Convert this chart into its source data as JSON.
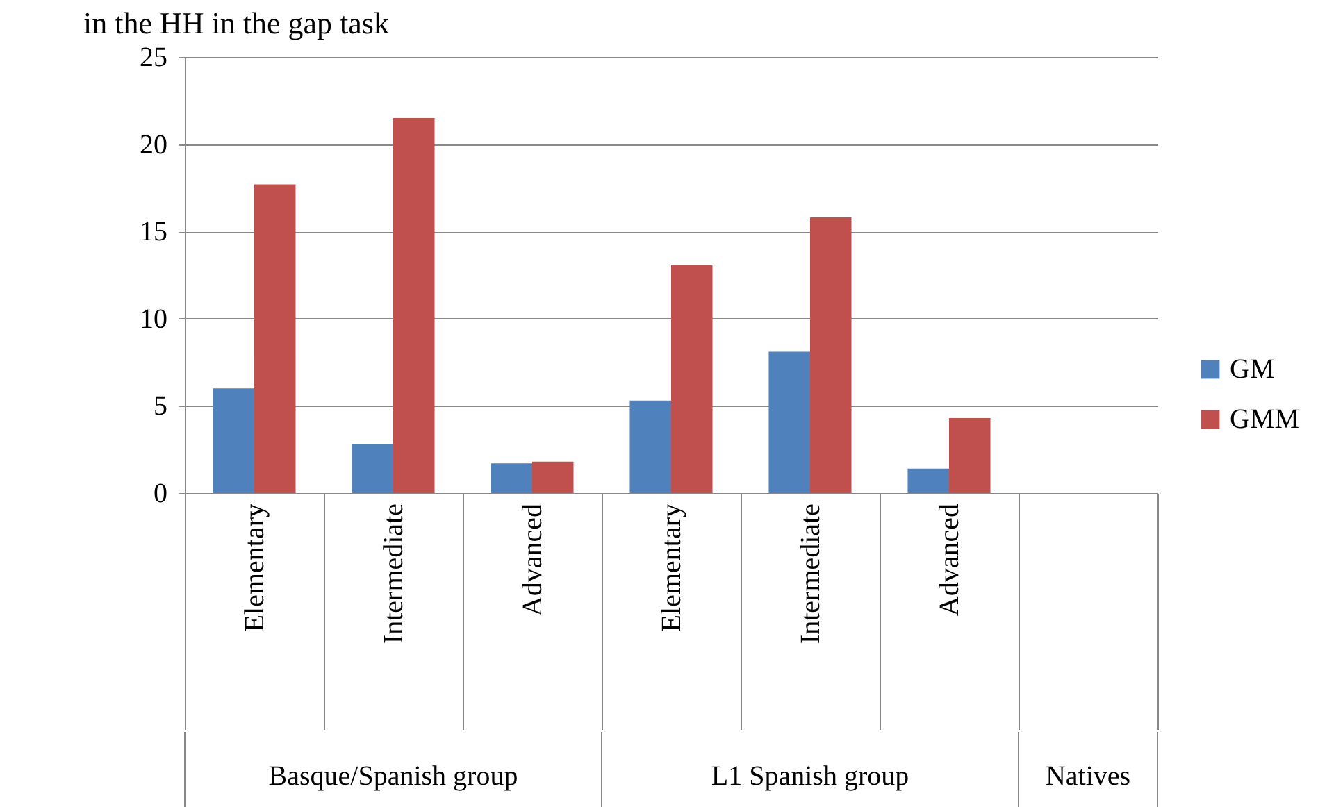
{
  "chart_data": {
    "type": "bar",
    "title": "in the HH in the gap task",
    "categories": [
      "Elementary",
      "Intermediate",
      "Advanced",
      "Elementary",
      "Intermediate",
      "Advanced",
      null
    ],
    "series": [
      {
        "name": "GM",
        "color": "#4f81bd",
        "values": [
          6.0,
          2.8,
          1.7,
          5.3,
          8.1,
          1.4,
          null
        ]
      },
      {
        "name": "GMM",
        "color": "#c0504d",
        "values": [
          17.7,
          21.5,
          1.8,
          13.1,
          15.8,
          4.3,
          null
        ]
      }
    ],
    "annotations": [
      "Basque/Spanish group",
      "L1 Spanish group",
      "Natives"
    ],
    "ylim": [
      0,
      25
    ],
    "yticks": [
      0,
      5,
      10,
      15,
      20,
      25
    ],
    "grid": "y",
    "legend": "right"
  }
}
